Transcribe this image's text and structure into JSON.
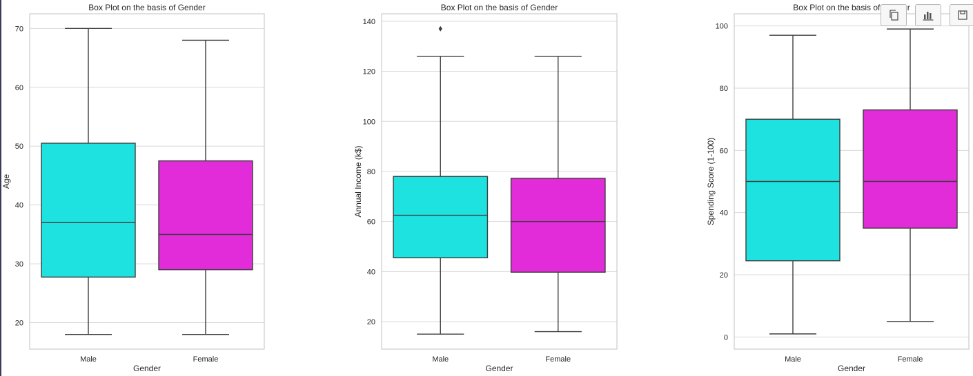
{
  "colors": {
    "male": "#1de2e0",
    "female": "#e22bd9",
    "axes_frame": "#cccccc",
    "grid": "#d8d8d8",
    "box_line": "#3d3d3d",
    "text": "#262626"
  },
  "toolbar": [
    {
      "name": "copy-icon"
    },
    {
      "name": "bar-chart-icon"
    },
    {
      "name": "save-icon"
    }
  ],
  "chart_data": [
    {
      "type": "box",
      "title": "Box Plot on the basis of Gender",
      "xlabel": "Gender",
      "ylabel": "Age",
      "ylim": [
        15.5,
        72.5
      ],
      "yticks": [
        20,
        30,
        40,
        50,
        60,
        70
      ],
      "grid": true,
      "categories": [
        "Male",
        "Female"
      ],
      "boxes": [
        {
          "category": "Male",
          "min": 18,
          "q1": 27.75,
          "median": 37,
          "q3": 50.5,
          "max": 70,
          "outliers": []
        },
        {
          "category": "Female",
          "min": 18,
          "q1": 29,
          "median": 35,
          "q3": 47.5,
          "max": 68,
          "outliers": []
        }
      ]
    },
    {
      "type": "box",
      "title": "Box Plot on the basis of Gender",
      "xlabel": "Gender",
      "ylabel": "Annual Income (k$)",
      "ylim": [
        9,
        143
      ],
      "yticks": [
        20,
        40,
        60,
        80,
        100,
        120,
        140
      ],
      "grid": true,
      "categories": [
        "Male",
        "Female"
      ],
      "boxes": [
        {
          "category": "Male",
          "min": 15,
          "q1": 45.5,
          "median": 62.5,
          "q3": 78,
          "max": 126,
          "outliers": [
            137
          ]
        },
        {
          "category": "Female",
          "min": 16,
          "q1": 39.75,
          "median": 60,
          "q3": 77.25,
          "max": 126,
          "outliers": []
        }
      ]
    },
    {
      "type": "box",
      "title": "Box Plot on the basis of Gender",
      "xlabel": "Gender",
      "ylabel": "Spending Score (1-100)",
      "ylim": [
        -3.9,
        103.9
      ],
      "yticks": [
        0,
        20,
        40,
        60,
        80,
        100
      ],
      "grid": true,
      "categories": [
        "Male",
        "Female"
      ],
      "boxes": [
        {
          "category": "Male",
          "min": 1,
          "q1": 24.5,
          "median": 50,
          "q3": 70,
          "max": 97,
          "outliers": []
        },
        {
          "category": "Female",
          "min": 5,
          "q1": 35,
          "median": 50,
          "q3": 73,
          "max": 99,
          "outliers": []
        }
      ]
    }
  ]
}
